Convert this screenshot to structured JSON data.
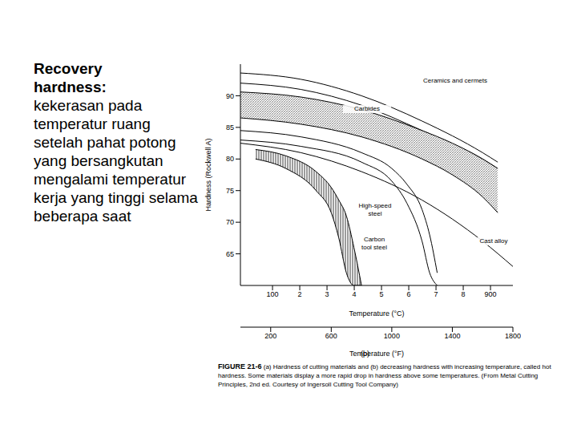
{
  "slide": {
    "heading": "Recovery hardness:",
    "text": "kekerasan pada temperatur ruang setelah pahat potong yang bersangkutan mengalami temperatur kerja yang tinggi selama beberapa saat"
  },
  "chart_data": {
    "type": "line",
    "xlabel": "Temperature (°F)",
    "ylabel": "Hardness (Rockwell A)",
    "x2label": "Temperature (°C)",
    "panel": "(b)",
    "figure_label": "FIGURE 21-6",
    "caption": "(a) Hardness of cutting materials and (b) decreasing hardness with increasing temperature, called hot hardness. Some materials display a more rapid drop in hardness above some temperatures. (From Metal Cutting Principles, 2nd ed. Courtesy of Ingersoll Cutting Tool Company)",
    "xlim": [
      0,
      1800
    ],
    "xticks": [
      200,
      600,
      1000,
      1400,
      1800
    ],
    "ylim": [
      60,
      95
    ],
    "yticks": [
      65,
      70,
      75,
      80,
      85,
      90
    ],
    "x2lim": [
      -17.8,
      982.2
    ],
    "x2ticks": [
      100,
      {
        "value": 200,
        "label": "2"
      },
      {
        "value": 300,
        "label": "3"
      },
      {
        "value": 400,
        "label": "4"
      },
      {
        "value": 500,
        "label": "5"
      },
      {
        "value": 600,
        "label": "6"
      },
      {
        "value": 700,
        "label": "7"
      },
      {
        "value": 800,
        "label": "8"
      },
      900
    ],
    "grid": false,
    "series": [
      {
        "name": "Ceramics and cermets",
        "type": "band",
        "color": "#000000",
        "x": [
          0,
          400,
          800,
          1200,
          1600,
          1700
        ],
        "values": [
          [
            92.0,
            93.6
          ],
          [
            91.0,
            92.6
          ],
          [
            88.5,
            90.0
          ],
          [
            84.5,
            86.0
          ],
          [
            80.0,
            81.0
          ],
          [
            78.5,
            79.5
          ]
        ]
      },
      {
        "name": "Carbides",
        "type": "band",
        "color": "#000000",
        "x": [
          0,
          400,
          800,
          1200,
          1400,
          1600,
          1700
        ],
        "values": [
          [
            86.5,
            90.6
          ],
          [
            85.5,
            89.8
          ],
          [
            83.5,
            87.8
          ],
          [
            80.0,
            84.5
          ],
          [
            77.5,
            82.5
          ],
          [
            74.0,
            80.0
          ],
          [
            71.5,
            78.5
          ]
        ]
      },
      {
        "name": "High-speed steel",
        "type": "band",
        "color": "#000000",
        "x": [
          0,
          400,
          800,
          1000,
          1100,
          1200,
          1250,
          1300
        ],
        "values": [
          [
            83.0,
            84.5
          ],
          [
            82.0,
            83.5
          ],
          [
            79.5,
            81.0
          ],
          [
            76.5,
            78.5
          ],
          [
            73.0,
            76.0
          ],
          [
            67.0,
            72.0
          ],
          [
            62.0,
            68.0
          ],
          [
            60.0,
            62.0
          ]
        ]
      },
      {
        "name": "Cast alloy",
        "type": "line",
        "color": "#000000",
        "x": [
          0,
          400,
          800,
          1200,
          1400,
          1600,
          1800
        ],
        "values": [
          82.5,
          81.0,
          78.0,
          73.5,
          70.5,
          67.0,
          63.0
        ]
      },
      {
        "name": "Carbon tool steel",
        "type": "band",
        "color": "#000000",
        "x": [
          100,
          300,
          500,
          600,
          650,
          700,
          750,
          800
        ],
        "values": [
          [
            80.0,
            81.5
          ],
          [
            78.5,
            80.5
          ],
          [
            75.0,
            78.0
          ],
          [
            71.5,
            75.5
          ],
          [
            67.5,
            73.5
          ],
          [
            62.0,
            71.0
          ],
          [
            60.0,
            66.0
          ],
          [
            60.0,
            60.0
          ]
        ]
      }
    ]
  }
}
